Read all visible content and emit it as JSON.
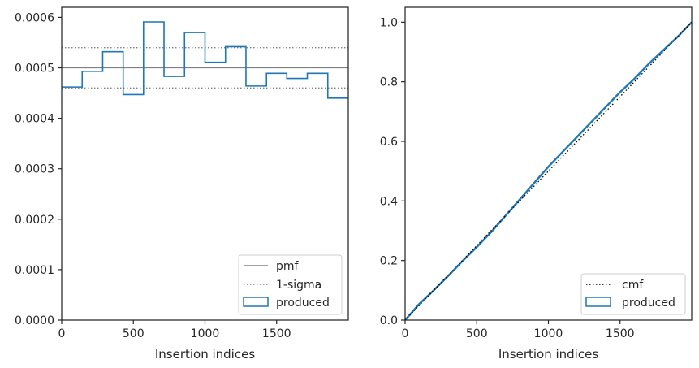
{
  "chart_data": [
    {
      "type": "histogram",
      "xlabel": "Insertion indices",
      "ylabel": "",
      "xlim": [
        0,
        2000
      ],
      "ylim": [
        0,
        0.00062
      ],
      "xticks": [
        0,
        500,
        1000,
        1500
      ],
      "xtick_labels": [
        "0",
        "500",
        "1000",
        "1500"
      ],
      "yticks": [
        0,
        0.0001,
        0.0002,
        0.0003,
        0.0004,
        0.0005,
        0.0006
      ],
      "ytick_labels": [
        "0.0000",
        "0.0001",
        "0.0002",
        "0.0003",
        "0.0004",
        "0.0005",
        "0.0006"
      ],
      "grid": false,
      "legend_position": "lower-right",
      "pmf": 0.0005,
      "sigma_upper": 0.00054,
      "sigma_lower": 0.00046,
      "bin_edges": [
        0,
        143,
        286,
        429,
        571,
        714,
        857,
        1000,
        1143,
        1286,
        1429,
        1571,
        1714,
        1857,
        2000
      ],
      "values": [
        0.000462,
        0.000493,
        0.000532,
        0.000447,
        0.000591,
        0.000483,
        0.00057,
        0.000511,
        0.000542,
        0.000464,
        0.000489,
        0.000479,
        0.000489,
        0.00044
      ],
      "series": [
        {
          "name": "pmf",
          "style": "solid",
          "color": "#808080"
        },
        {
          "name": "1-sigma",
          "style": "dotted",
          "color": "#808080"
        },
        {
          "name": "produced",
          "style": "step",
          "color": "#1f77b4"
        }
      ]
    },
    {
      "type": "line",
      "xlabel": "Insertion indices",
      "ylabel": "",
      "xlim": [
        0,
        2000
      ],
      "ylim": [
        0,
        1.05
      ],
      "xticks": [
        0,
        500,
        1000,
        1500
      ],
      "xtick_labels": [
        "0",
        "500",
        "1000",
        "1500"
      ],
      "yticks": [
        0,
        0.2,
        0.4,
        0.6,
        0.8,
        1.0
      ],
      "ytick_labels": [
        "0.0",
        "0.2",
        "0.4",
        "0.6",
        "0.8",
        "1.0"
      ],
      "grid": false,
      "legend_position": "lower-right",
      "cmf": {
        "x": [
          0,
          2000
        ],
        "y": [
          0,
          1.0
        ]
      },
      "produced": {
        "x": [
          0,
          100,
          200,
          300,
          400,
          500,
          600,
          700,
          800,
          900,
          1000,
          1100,
          1200,
          1300,
          1400,
          1500,
          1600,
          1700,
          1800,
          1900,
          2000
        ],
        "y": [
          0,
          0.055,
          0.1,
          0.148,
          0.198,
          0.245,
          0.295,
          0.35,
          0.405,
          0.46,
          0.515,
          0.565,
          0.615,
          0.665,
          0.715,
          0.765,
          0.81,
          0.86,
          0.905,
          0.95,
          1.0
        ]
      },
      "series": [
        {
          "name": "cmf",
          "style": "dotted",
          "color": "#000000"
        },
        {
          "name": "produced",
          "style": "step",
          "color": "#1f77b4"
        }
      ]
    }
  ]
}
